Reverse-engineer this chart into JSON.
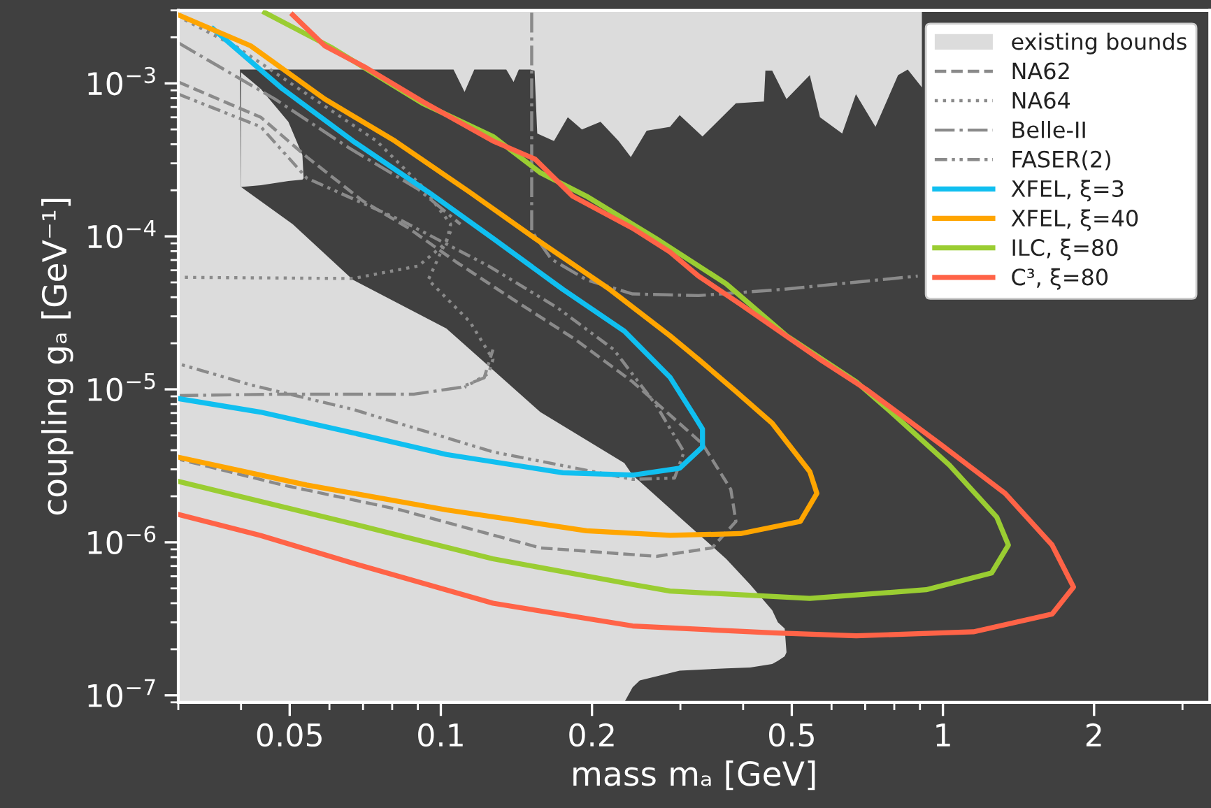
{
  "chart_data": {
    "type": "line",
    "xlabel": "mass mₐ [GeV]",
    "ylabel": "coupling gₐ [GeV⁻¹]",
    "log": "xy",
    "xlim": [
      0.03,
      3.4
    ],
    "ylim": [
      9e-08,
      0.003
    ],
    "xticks": [
      0.05,
      0.1,
      0.2,
      0.5,
      1,
      2
    ],
    "yticks": [
      {
        "value": 1e-07,
        "label": "10$^{−7}$"
      },
      {
        "value": 1e-06,
        "label": "10$^{−6}$"
      },
      {
        "value": 1e-05,
        "label": "10$^{−5}$"
      },
      {
        "value": 0.0001,
        "label": "10$^{−4}$"
      },
      {
        "value": 0.001,
        "label": "10$^{−3}$"
      }
    ],
    "legend": "top right",
    "grid": false,
    "series": [
      {
        "name": "existing bounds",
        "color": "#dcdcdc",
        "x": [
          0.03,
          0.0397,
          0.04,
          0.0507,
          0.0668,
          0.1026,
          0.1578,
          0.232,
          0.241,
          0.249,
          0.299,
          0.37,
          0.413,
          0.457,
          0.469,
          0.484,
          0.488
        ],
        "values": [
          null,
          null,
          null,
          null,
          null,
          null,
          null,
          null,
          null,
          null,
          null,
          null,
          null,
          null,
          null,
          null,
          null
        ],
        "lower": [
          9e-08,
          9e-08,
          9e-08,
          9e-08,
          9e-08,
          9e-08,
          9e-08,
          9e-08,
          1.13e-07,
          1.25e-07,
          1.45e-07,
          1.5e-07,
          1.52e-07,
          1.6e-07,
          1.68e-07,
          1.8e-07,
          1.91e-07
        ],
        "upper": [
          0.003,
          0.003,
          0.00021,
          0.00012,
          5.2e-05,
          2.5e-05,
          7.1e-06,
          3.3e-06,
          2.74e-06,
          2.5e-06,
          1.46e-06,
          7.8e-07,
          5.3e-07,
          3.6e-07,
          3e-07,
          2.73e-07,
          1.91e-07
        ]
      },
      {
        "color": "#dcdcdc",
        "x": [
          0.04,
          0.0438,
          0.0497,
          0.053,
          0.0533
        ],
        "values": [
          null,
          null,
          null,
          null,
          null
        ],
        "lower": [
          0.00021,
          0.000216,
          0.00023,
          0.000235,
          0.00024
        ],
        "upper": [
          0.00118,
          0.00092,
          0.00056,
          0.00034,
          0.00024
        ]
      },
      {
        "color": "#dcdcdc",
        "values": [
          null,
          null,
          null,
          null,
          null,
          null,
          null,
          null,
          null,
          null,
          null,
          null,
          null,
          null,
          null,
          null,
          null,
          null,
          null,
          null,
          null,
          null,
          null,
          null,
          null,
          null,
          null,
          null,
          null,
          null,
          null,
          null,
          null
        ],
        "x": [
          0.0392,
          0.106,
          0.1115,
          0.1166,
          0.135,
          0.1396,
          0.143,
          0.1508,
          0.1537,
          0.1556,
          0.168,
          0.179,
          0.191,
          0.208,
          0.226,
          0.239,
          0.257,
          0.286,
          0.299,
          0.332,
          0.387,
          0.44,
          0.443,
          0.457,
          0.488,
          0.543,
          0.569,
          0.63,
          0.671,
          0.734,
          0.814,
          0.851,
          0.908
        ],
        "lower": [
          0.00123,
          0.00123,
          0.00088,
          0.00123,
          0.00123,
          0.00102,
          0.00123,
          0.00123,
          0.00121,
          0.00047,
          0.00042,
          0.0006,
          0.0005,
          0.00056,
          0.00042,
          0.00033,
          0.00049,
          0.00052,
          0.00062,
          0.00045,
          0.00074,
          0.00076,
          0.00121,
          0.00121,
          0.00079,
          0.00113,
          0.0006,
          0.00047,
          0.00085,
          0.00052,
          0.00113,
          0.00123,
          0.00094
        ],
        "upper": [
          0.003,
          0.003,
          0.003,
          0.003,
          0.003,
          0.003,
          0.003,
          0.003,
          0.003,
          0.003,
          0.003,
          0.003,
          0.003,
          0.003,
          0.003,
          0.003,
          0.003,
          0.003,
          0.003,
          0.003,
          0.003,
          0.003,
          0.003,
          0.003,
          0.003,
          0.003,
          0.003,
          0.003,
          0.003,
          0.003,
          0.003,
          0.003,
          0.003
        ]
      },
      {
        "name": "NA62",
        "line_style": "dashed",
        "color": "#8a8a8a",
        "x": [
          0.03,
          0.0438,
          0.0541,
          0.0698,
          0.0863,
          0.1073,
          0.1388,
          0.186,
          0.241,
          0.332,
          0.378,
          0.387,
          0.347,
          0.269,
          0.1578,
          0.083,
          0.0484,
          0.03
        ],
        "values": [
          0.00102,
          0.0006,
          0.00033,
          0.000171,
          0.000113,
          6.8e-05,
          3.9e-05,
          2.1e-05,
          1.12e-05,
          4.4e-06,
          2.22e-06,
          1.37e-06,
          9.2e-07,
          8.1e-07,
          9.2e-07,
          1.63e-06,
          2.37e-06,
          3.5e-06
        ]
      },
      {
        "name": "NA64",
        "line_style": "dotted",
        "color": "#8a8a8a",
        "x": [
          0.0309,
          0.0392,
          0.0541,
          0.0745,
          0.092,
          0.1046,
          0.1026,
          0.0902,
          0.0668,
          0.03
        ],
        "values": [
          0.0026,
          0.00173,
          0.00085,
          0.00042,
          0.00021,
          0.00012,
          9.1e-05,
          6.4e-05,
          5.3e-05,
          5.4e-05
        ]
      },
      {
        "line_style": "dotted",
        "color": "#8a8a8a",
        "x": [
          0.1046,
          0.0944,
          0.1143,
          0.127,
          0.1245,
          0.1115
        ],
        "values": [
          0.000108,
          5.2e-05,
          2.76e-05,
          1.57e-05,
          1.27e-05,
          1.03e-05
        ]
      },
      {
        "name": "Belle-II",
        "line_style": "dashdot",
        "color": "#8a8a8a",
        "x": [
          0.03,
          0.0467,
          0.0655,
          0.0902,
          0.1094
        ],
        "values": [
          0.00184,
          0.00079,
          0.00038,
          0.000203,
          0.00012
        ]
      },
      {
        "line_style": "dashdot",
        "color": "#8a8a8a",
        "x": [
          0.03,
          0.0475,
          0.0885,
          0.1094,
          0.122,
          0.127
        ],
        "values": [
          9.1e-06,
          9.3e-06,
          9.3e-06,
          1.03e-05,
          1.19e-05,
          1.82e-05
        ]
      },
      {
        "line_style": "dashdot",
        "color": "#8a8a8a",
        "x": [
          0.1517,
          0.1517,
          0.166,
          0.195,
          0.241,
          0.326,
          0.479,
          0.891
        ],
        "values": [
          0.0029,
          0.000108,
          7.1e-05,
          5.2e-05,
          4.2e-05,
          4.1e-05,
          4.5e-05,
          5.5e-05
        ]
      },
      {
        "name": "FASER(2)",
        "line_style": "dashdotdot",
        "color": "#8a8a8a",
        "x": [
          0.03,
          0.0438,
          0.0541,
          0.083,
          0.1245,
          0.171,
          0.221,
          0.269,
          0.305,
          0.292,
          0.241,
          0.127,
          0.0668,
          0.0418,
          0.03
        ],
        "values": [
          0.00085,
          0.00052,
          0.00024,
          0.000128,
          6.4e-05,
          3.4e-05,
          1.82e-05,
          7.8e-06,
          3.9e-06,
          2.63e-06,
          2.58e-06,
          3.9e-06,
          7.4e-06,
          1.07e-05,
          1.47e-05
        ]
      },
      {
        "name": "XFEL, ξ=3",
        "line_style": "solid",
        "color": "#10bff0",
        "x": [
          0.0352,
          0.0484,
          0.0668,
          0.0944,
          0.127,
          0.175,
          0.232,
          0.286,
          0.319,
          0.332,
          0.332,
          0.299,
          0.241,
          0.175,
          0.1026,
          0.0668,
          0.0437,
          0.03
        ],
        "values": [
          0.00227,
          0.00092,
          0.00042,
          0.000195,
          9.7e-05,
          4.5e-05,
          2.4e-05,
          1.2e-05,
          6.8e-06,
          5.5e-06,
          4.2e-06,
          3.05e-06,
          2.75e-06,
          2.85e-06,
          3.75e-06,
          5.2e-06,
          7.1e-06,
          8.7e-06
        ]
      },
      {
        "name": "XFEL, ξ=40",
        "line_style": "solid",
        "color": "#ffa500",
        "x": [
          0.03,
          0.0418,
          0.0587,
          0.081,
          0.114,
          0.154,
          0.217,
          0.286,
          0.326,
          0.387,
          0.457,
          0.543,
          0.561,
          0.52,
          0.395,
          0.286,
          0.195,
          0.1026,
          0.054,
          0.03
        ],
        "values": [
          0.0028,
          0.00176,
          0.00079,
          0.00042,
          0.000195,
          9.7e-05,
          4.5e-05,
          2.24e-05,
          1.57e-05,
          9.7e-06,
          6e-06,
          2.9e-06,
          2.09e-06,
          1.37e-06,
          1.14e-06,
          1.11e-06,
          1.19e-06,
          1.63e-06,
          2.37e-06,
          3.6e-06
        ]
      },
      {
        "name": "ILC, ξ=80",
        "line_style": "solid",
        "color": "#9acd32",
        "x": [
          0.0446,
          0.0603,
          0.0745,
          0.092,
          0.127,
          0.158,
          0.195,
          0.268,
          0.37,
          0.488,
          0.672,
          0.8,
          1.03,
          1.28,
          1.35,
          1.25,
          0.926,
          0.543,
          0.286,
          0.241,
          0.127,
          0.0668,
          0.03
        ],
        "values": [
          0.0029,
          0.00173,
          0.00113,
          0.00074,
          0.00045,
          0.00026,
          0.000183,
          9.7e-05,
          4.9e-05,
          2.24e-05,
          1.12e-05,
          6.8e-06,
          3.2e-06,
          1.46e-06,
          9.6e-07,
          6.3e-07,
          4.9e-07,
          4.3e-07,
          4.8e-07,
          5.3e-07,
          7.8e-07,
          1.32e-06,
          2.5e-06
        ]
      },
      {
        "name": "C³, ξ=80",
        "line_style": "solid",
        "color": "#ff6347",
        "x": [
          0.0507,
          0.0587,
          0.0711,
          0.092,
          0.127,
          0.154,
          0.183,
          0.241,
          0.286,
          0.326,
          0.395,
          0.569,
          0.703,
          0.987,
          1.33,
          1.65,
          1.82,
          1.65,
          1.15,
          0.672,
          0.457,
          0.241,
          0.127,
          0.0668,
          0.0437,
          0.03
        ],
        "values": [
          0.0028,
          0.00176,
          0.00126,
          0.00076,
          0.00042,
          0.00032,
          0.000183,
          0.000113,
          7.9e-05,
          5.5e-05,
          3.6e-05,
          1.57e-05,
          1e-05,
          4.4e-06,
          2.09e-06,
          9.6e-07,
          5.1e-07,
          3.4e-07,
          2.6e-07,
          2.45e-07,
          2.56e-07,
          2.84e-07,
          4e-07,
          7.3e-07,
          1.11e-06,
          1.52e-06
        ]
      }
    ]
  }
}
